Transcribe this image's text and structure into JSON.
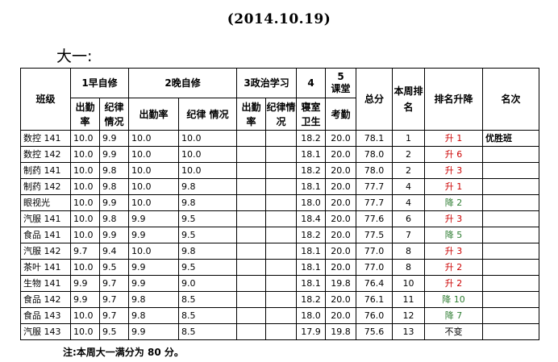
{
  "date": "(2014.10.19)",
  "heading": "大一:",
  "headers": {
    "class": "班级",
    "group1": "1早自修",
    "group2": "2晚自修",
    "group3": "3政治学习",
    "group4": "4",
    "group5_num": "5",
    "group5_text": "课堂",
    "total": "总分",
    "rank_week": "本周排名",
    "rank_change": "排名升降",
    "ranking": "名次",
    "g1_att": "出勤率",
    "g1_disc": "纪律情况",
    "g2_att": "出勤率",
    "g2_disc": "纪律 情况",
    "g3_att": "出勤率",
    "g3_disc": "纪律情况",
    "g4_sub": "寝室卫生",
    "g5_sub": "考勤"
  },
  "rows": [
    {
      "class": "数控 141",
      "a1": "10.0",
      "d1": "9.9",
      "a2": "10.0",
      "d2": "10.0",
      "a3": "",
      "d3": "",
      "dorm": "18.2",
      "att": "20.0",
      "total": "78.1",
      "rank": "1",
      "change": "升 1",
      "dir": "up",
      "award": "优胜班"
    },
    {
      "class": "数控 142",
      "a1": "10.0",
      "d1": "9.9",
      "a2": "10.0",
      "d2": "10.0",
      "a3": "",
      "d3": "",
      "dorm": "18.1",
      "att": "20.0",
      "total": "78.0",
      "rank": "2",
      "change": "升 6",
      "dir": "up",
      "award": ""
    },
    {
      "class": "制药 141",
      "a1": "10.0",
      "d1": "9.8",
      "a2": "10.0",
      "d2": "10.0",
      "a3": "",
      "d3": "",
      "dorm": "18.2",
      "att": "20.0",
      "total": "78.0",
      "rank": "2",
      "change": "升 3",
      "dir": "up",
      "award": ""
    },
    {
      "class": "制药 142",
      "a1": "10.0",
      "d1": "9.8",
      "a2": "10.0",
      "d2": "9.8",
      "a3": "",
      "d3": "",
      "dorm": "18.1",
      "att": "20.0",
      "total": "77.7",
      "rank": "4",
      "change": "升 1",
      "dir": "up",
      "award": ""
    },
    {
      "class": "眼视光",
      "a1": "10.0",
      "d1": "9.9",
      "a2": "10.0",
      "d2": "9.8",
      "a3": "",
      "d3": "",
      "dorm": "18.0",
      "att": "20.0",
      "total": "77.7",
      "rank": "4",
      "change": "降 2",
      "dir": "down",
      "award": ""
    },
    {
      "class": "汽服 141",
      "a1": "10.0",
      "d1": "9.8",
      "a2": "9.9",
      "d2": "9.5",
      "a3": "",
      "d3": "",
      "dorm": "18.4",
      "att": "20.0",
      "total": "77.6",
      "rank": "6",
      "change": "升 3",
      "dir": "up",
      "award": ""
    },
    {
      "class": "食品 141",
      "a1": "10.0",
      "d1": "9.9",
      "a2": "9.9",
      "d2": "9.5",
      "a3": "",
      "d3": "",
      "dorm": "18.2",
      "att": "20.0",
      "total": "77.5",
      "rank": "7",
      "change": "降 5",
      "dir": "down",
      "award": ""
    },
    {
      "class": "汽服 142",
      "a1": "9.7",
      "d1": "9.4",
      "a2": "10.0",
      "d2": "9.8",
      "a3": "",
      "d3": "",
      "dorm": "18.1",
      "att": "20.0",
      "total": "77.0",
      "rank": "8",
      "change": "升 3",
      "dir": "up",
      "award": ""
    },
    {
      "class": "茶叶 141",
      "a1": "10.0",
      "d1": "9.5",
      "a2": "9.9",
      "d2": "9.5",
      "a3": "",
      "d3": "",
      "dorm": "18.1",
      "att": "20.0",
      "total": "77.0",
      "rank": "8",
      "change": "升 2",
      "dir": "up",
      "award": ""
    },
    {
      "class": "生物 141",
      "a1": "9.9",
      "d1": "9.7",
      "a2": "9.9",
      "d2": "9.0",
      "a3": "",
      "d3": "",
      "dorm": "18.1",
      "att": "19.8",
      "total": "76.4",
      "rank": "10",
      "change": "升 2",
      "dir": "up",
      "award": ""
    },
    {
      "class": "食品 142",
      "a1": "9.9",
      "d1": "9.7",
      "a2": "9.8",
      "d2": "8.5",
      "a3": "",
      "d3": "",
      "dorm": "18.2",
      "att": "20.0",
      "total": "76.1",
      "rank": "11",
      "change": "降 10",
      "dir": "down",
      "award": ""
    },
    {
      "class": "食品 143",
      "a1": "10.0",
      "d1": "9.7",
      "a2": "9.8",
      "d2": "8.5",
      "a3": "",
      "d3": "",
      "dorm": "18.0",
      "att": "20.0",
      "total": "76.0",
      "rank": "12",
      "change": "降 7",
      "dir": "down",
      "award": ""
    },
    {
      "class": "汽服 143",
      "a1": "10.0",
      "d1": "9.5",
      "a2": "9.9",
      "d2": "8.5",
      "a3": "",
      "d3": "",
      "dorm": "17.9",
      "att": "19.8",
      "total": "75.6",
      "rank": "13",
      "change": "不变",
      "dir": "same",
      "award": ""
    }
  ],
  "note": "注:本周大一满分为 80 分。"
}
